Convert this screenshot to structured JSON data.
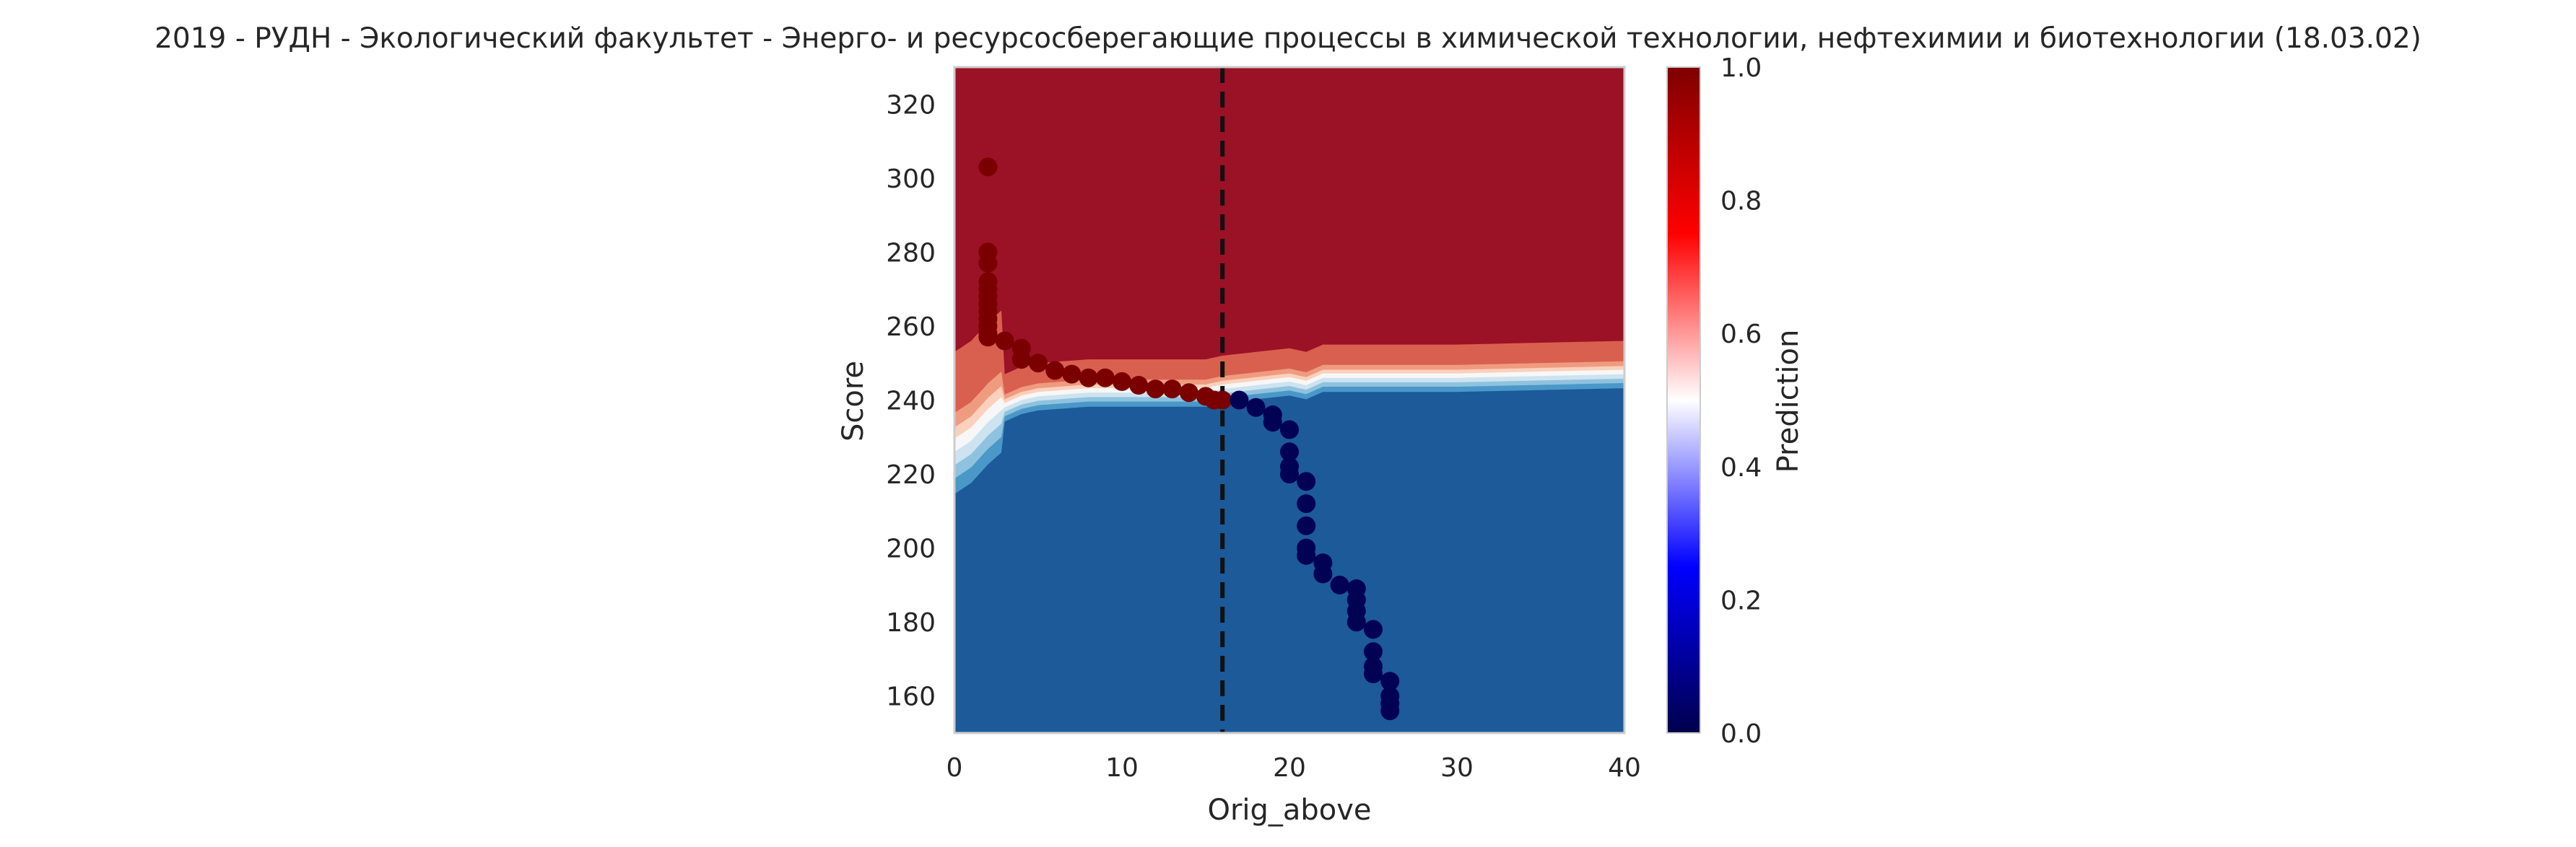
{
  "chart_data": {
    "type": "heatmap",
    "title": "2019 - РУДН - Экологический факультет - Энерго- и ресурсосберегающие процессы в химической технологии, нефтехимии и биотехнологии (18.03.02)",
    "xlabel": "Orig_above",
    "ylabel": "Score",
    "xlim": [
      0,
      40
    ],
    "ylim": [
      150,
      330
    ],
    "x_ticks": [
      "0",
      "10",
      "20",
      "30",
      "40"
    ],
    "y_ticks": [
      "160",
      "180",
      "200",
      "220",
      "240",
      "260",
      "280",
      "300",
      "320"
    ],
    "grid": false,
    "colorbar": {
      "label": "Prediction",
      "range": [
        0,
        1
      ],
      "ticks": [
        "0.0",
        "0.2",
        "0.4",
        "0.6",
        "0.8",
        "1.0"
      ],
      "colormap": "seismic"
    },
    "threshold_line": {
      "x": 16,
      "style": "dashed",
      "color": "#111111"
    },
    "contour_levels": [
      {
        "level": 0.95,
        "color": "#9b1126"
      },
      {
        "level": 0.8,
        "color": "#d9604e"
      },
      {
        "level": 0.7,
        "color": "#ef9b80"
      },
      {
        "level": 0.6,
        "color": "#fbd0bc"
      },
      {
        "level": 0.5,
        "color": "#f7f7f7"
      },
      {
        "level": 0.4,
        "color": "#cde3ef"
      },
      {
        "level": 0.3,
        "color": "#8fc2de"
      },
      {
        "level": 0.2,
        "color": "#4a98c8"
      },
      {
        "level": 0.05,
        "color": "#1c5a9a"
      }
    ],
    "boundary_score": [
      [
        0,
        226
      ],
      [
        1,
        229
      ],
      [
        2,
        234
      ],
      [
        3,
        238
      ],
      [
        4,
        240
      ],
      [
        5,
        241
      ],
      [
        8,
        242
      ],
      [
        12,
        242
      ],
      [
        15,
        242
      ],
      [
        16,
        243
      ],
      [
        18,
        244
      ],
      [
        20,
        245
      ],
      [
        21,
        244
      ],
      [
        22,
        246
      ],
      [
        30,
        246
      ],
      [
        40,
        247
      ]
    ],
    "series": [
      {
        "name": "admitted",
        "color": "#7a0000",
        "points": [
          [
            2,
            303
          ],
          [
            2,
            280
          ],
          [
            2,
            277
          ],
          [
            2,
            272
          ],
          [
            2,
            270
          ],
          [
            2,
            268
          ],
          [
            2,
            266
          ],
          [
            2,
            264
          ],
          [
            2,
            262
          ],
          [
            2,
            260
          ],
          [
            2,
            258
          ],
          [
            2,
            257
          ],
          [
            3,
            256
          ],
          [
            4,
            254
          ],
          [
            4,
            251
          ],
          [
            5,
            250
          ],
          [
            6,
            248
          ],
          [
            7,
            247
          ],
          [
            8,
            246
          ],
          [
            9,
            246
          ],
          [
            10,
            245
          ],
          [
            11,
            244
          ],
          [
            12,
            243
          ],
          [
            13,
            243
          ],
          [
            14,
            242
          ],
          [
            15,
            241
          ],
          [
            15.5,
            240
          ],
          [
            16,
            240
          ]
        ]
      },
      {
        "name": "not_admitted",
        "color": "#020254",
        "points": [
          [
            17,
            240
          ],
          [
            18,
            238
          ],
          [
            19,
            236
          ],
          [
            19,
            234
          ],
          [
            20,
            232
          ],
          [
            20,
            226
          ],
          [
            20,
            222
          ],
          [
            20,
            220
          ],
          [
            21,
            218
          ],
          [
            21,
            212
          ],
          [
            21,
            206
          ],
          [
            21,
            200
          ],
          [
            21,
            198
          ],
          [
            22,
            196
          ],
          [
            22,
            193
          ],
          [
            23,
            190
          ],
          [
            24,
            189
          ],
          [
            24,
            186
          ],
          [
            24,
            183
          ],
          [
            24,
            180
          ],
          [
            25,
            178
          ],
          [
            25,
            172
          ],
          [
            25,
            168
          ],
          [
            25,
            166
          ],
          [
            26,
            164
          ],
          [
            26,
            160
          ],
          [
            26,
            158
          ],
          [
            26,
            156
          ]
        ]
      }
    ]
  }
}
